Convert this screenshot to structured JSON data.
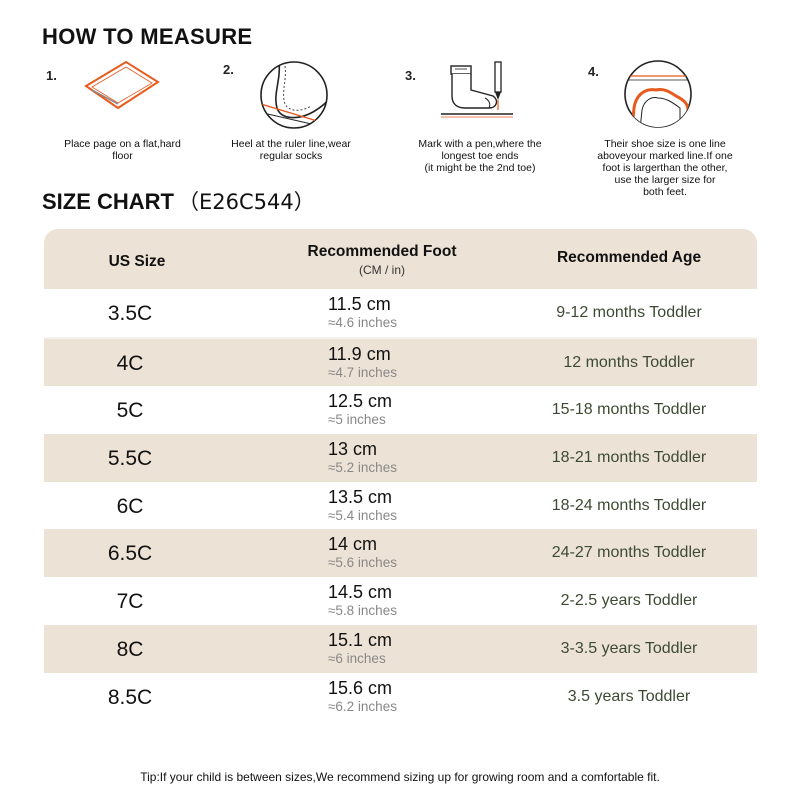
{
  "how_to_measure": {
    "title": "HOW TO MEASURE",
    "steps": [
      {
        "num": "1.",
        "icon": "paper-icon",
        "caption": [
          "Place page on a flat,hard",
          "floor"
        ]
      },
      {
        "num": "2.",
        "icon": "heel-ruler-icon",
        "caption": [
          "Heel at the ruler line,wear",
          "regular socks"
        ]
      },
      {
        "num": "3.",
        "icon": "sock-pen-icon",
        "caption": [
          "Mark with a pen,where the",
          "longest toe ends",
          "(it might be the 2nd toe)"
        ]
      },
      {
        "num": "4.",
        "icon": "shoe-line-icon",
        "caption": [
          "Their shoe size is one line",
          "aboveyour marked line.If one",
          "foot is largerthan the other,",
          "use the larger size for",
          "both feet."
        ]
      }
    ]
  },
  "size_chart": {
    "title": "SIZE CHART",
    "code": "（E26C544）",
    "headers": {
      "us_size": "US Size",
      "foot": "Recommended Foot",
      "foot_sub": "(CM / in)",
      "age": "Recommended Age"
    },
    "rows": [
      {
        "size": "3.5C",
        "cm": "11.5 cm",
        "inches": "≈4.6 inches",
        "age": "9-12 months Toddler"
      },
      {
        "size": "4C",
        "cm": "11.9 cm",
        "inches": "≈4.7 inches",
        "age": "12 months Toddler"
      },
      {
        "size": "5C",
        "cm": "12.5 cm",
        "inches": "≈5 inches",
        "age": "15-18 months Toddler"
      },
      {
        "size": "5.5C",
        "cm": "13 cm",
        "inches": "≈5.2 inches",
        "age": "18-21 months Toddler"
      },
      {
        "size": "6C",
        "cm": "13.5 cm",
        "inches": "≈5.4 inches",
        "age": "18-24 months Toddler"
      },
      {
        "size": "6.5C",
        "cm": "14 cm",
        "inches": "≈5.6 inches",
        "age": "24-27 months Toddler"
      },
      {
        "size": "7C",
        "cm": "14.5 cm",
        "inches": "≈5.8 inches",
        "age": "2-2.5 years Toddler"
      },
      {
        "size": "8C",
        "cm": "15.1 cm",
        "inches": "≈6 inches",
        "age": "3-3.5 years Toddler"
      },
      {
        "size": "8.5C",
        "cm": "15.6 cm",
        "inches": "≈6.2 inches",
        "age": "3.5 years Toddler"
      }
    ]
  },
  "tip": "Tip:If your child is between sizes,We recommend sizing up for growing room and a comfortable fit.",
  "colors": {
    "accent": "#e85a1e",
    "header_bg": "#ece3d6",
    "age_text": "#3d4a33"
  }
}
